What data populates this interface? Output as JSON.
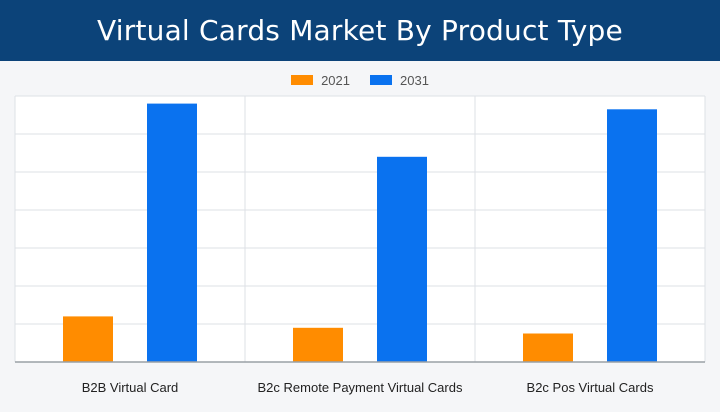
{
  "chart_data": {
    "type": "bar",
    "title": "Virtual Cards Market By Product Type",
    "xlabel": "",
    "ylabel": "",
    "categories": [
      "B2B Virtual Card",
      "B2c Remote Payment Virtual Cards",
      "B2c Pos Virtual Cards"
    ],
    "series": [
      {
        "name": "2021",
        "color": "#ff8c00",
        "values": [
          12,
          9,
          7.5
        ]
      },
      {
        "name": "2031",
        "color": "#0a72ef",
        "values": [
          68,
          54,
          66.5
        ]
      }
    ],
    "ylim": [
      0,
      70
    ],
    "grid": true,
    "legend": "top-center"
  }
}
